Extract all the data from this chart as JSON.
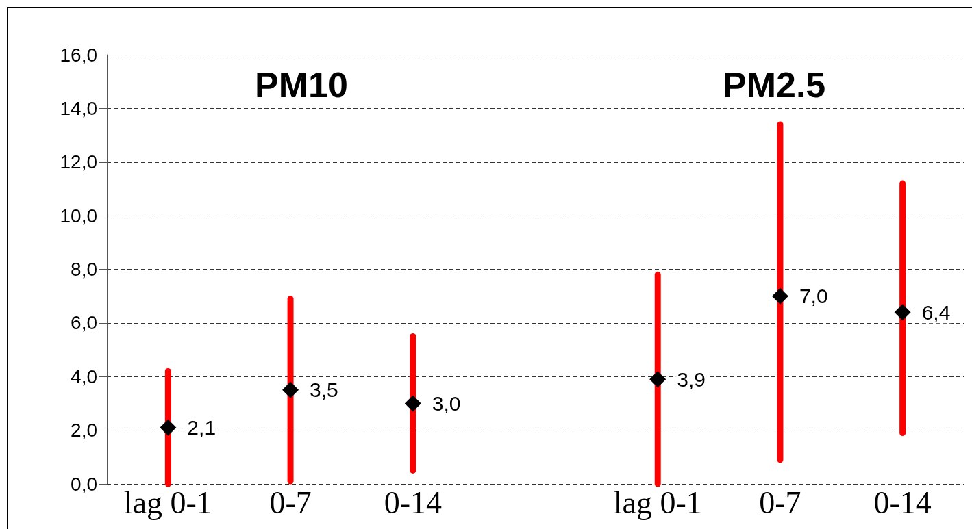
{
  "chart_data": {
    "type": "scatter",
    "categories": [
      "lag 0-1",
      "0-7",
      "0-14",
      null,
      "lag 0-1",
      "0-7",
      "0-14"
    ],
    "series": [
      {
        "color": "#000000",
        "values": [
          2.1,
          3.5,
          3.0,
          null,
          3.9,
          7.0,
          6.4
        ],
        "value_labels": [
          "2,1",
          "3,5",
          "3,0",
          null,
          "3,9",
          "7,0",
          "6,4"
        ],
        "errors": [
          [
            0.0,
            4.2
          ],
          [
            0.1,
            6.9
          ],
          [
            0.5,
            5.5
          ],
          null,
          [
            0.0,
            7.8
          ],
          [
            0.9,
            13.4
          ],
          [
            1.9,
            11.2
          ]
        ]
      }
    ],
    "marker": "diamond",
    "ylim": [
      0,
      16
    ],
    "yticks": [
      {
        "value": 0,
        "label": "0,0"
      },
      {
        "value": 2,
        "label": "2,0"
      },
      {
        "value": 4,
        "label": "4,0"
      },
      {
        "value": 6,
        "label": "6,0"
      },
      {
        "value": 8,
        "label": "8,0"
      },
      {
        "value": 10,
        "label": "10,0"
      },
      {
        "value": 12,
        "label": "12,0"
      },
      {
        "value": 14,
        "label": "14,0"
      },
      {
        "value": 16,
        "label": "16,0"
      }
    ],
    "grid": "y",
    "legend": false,
    "annotations": [
      "PM10",
      "PM2.5"
    ]
  }
}
